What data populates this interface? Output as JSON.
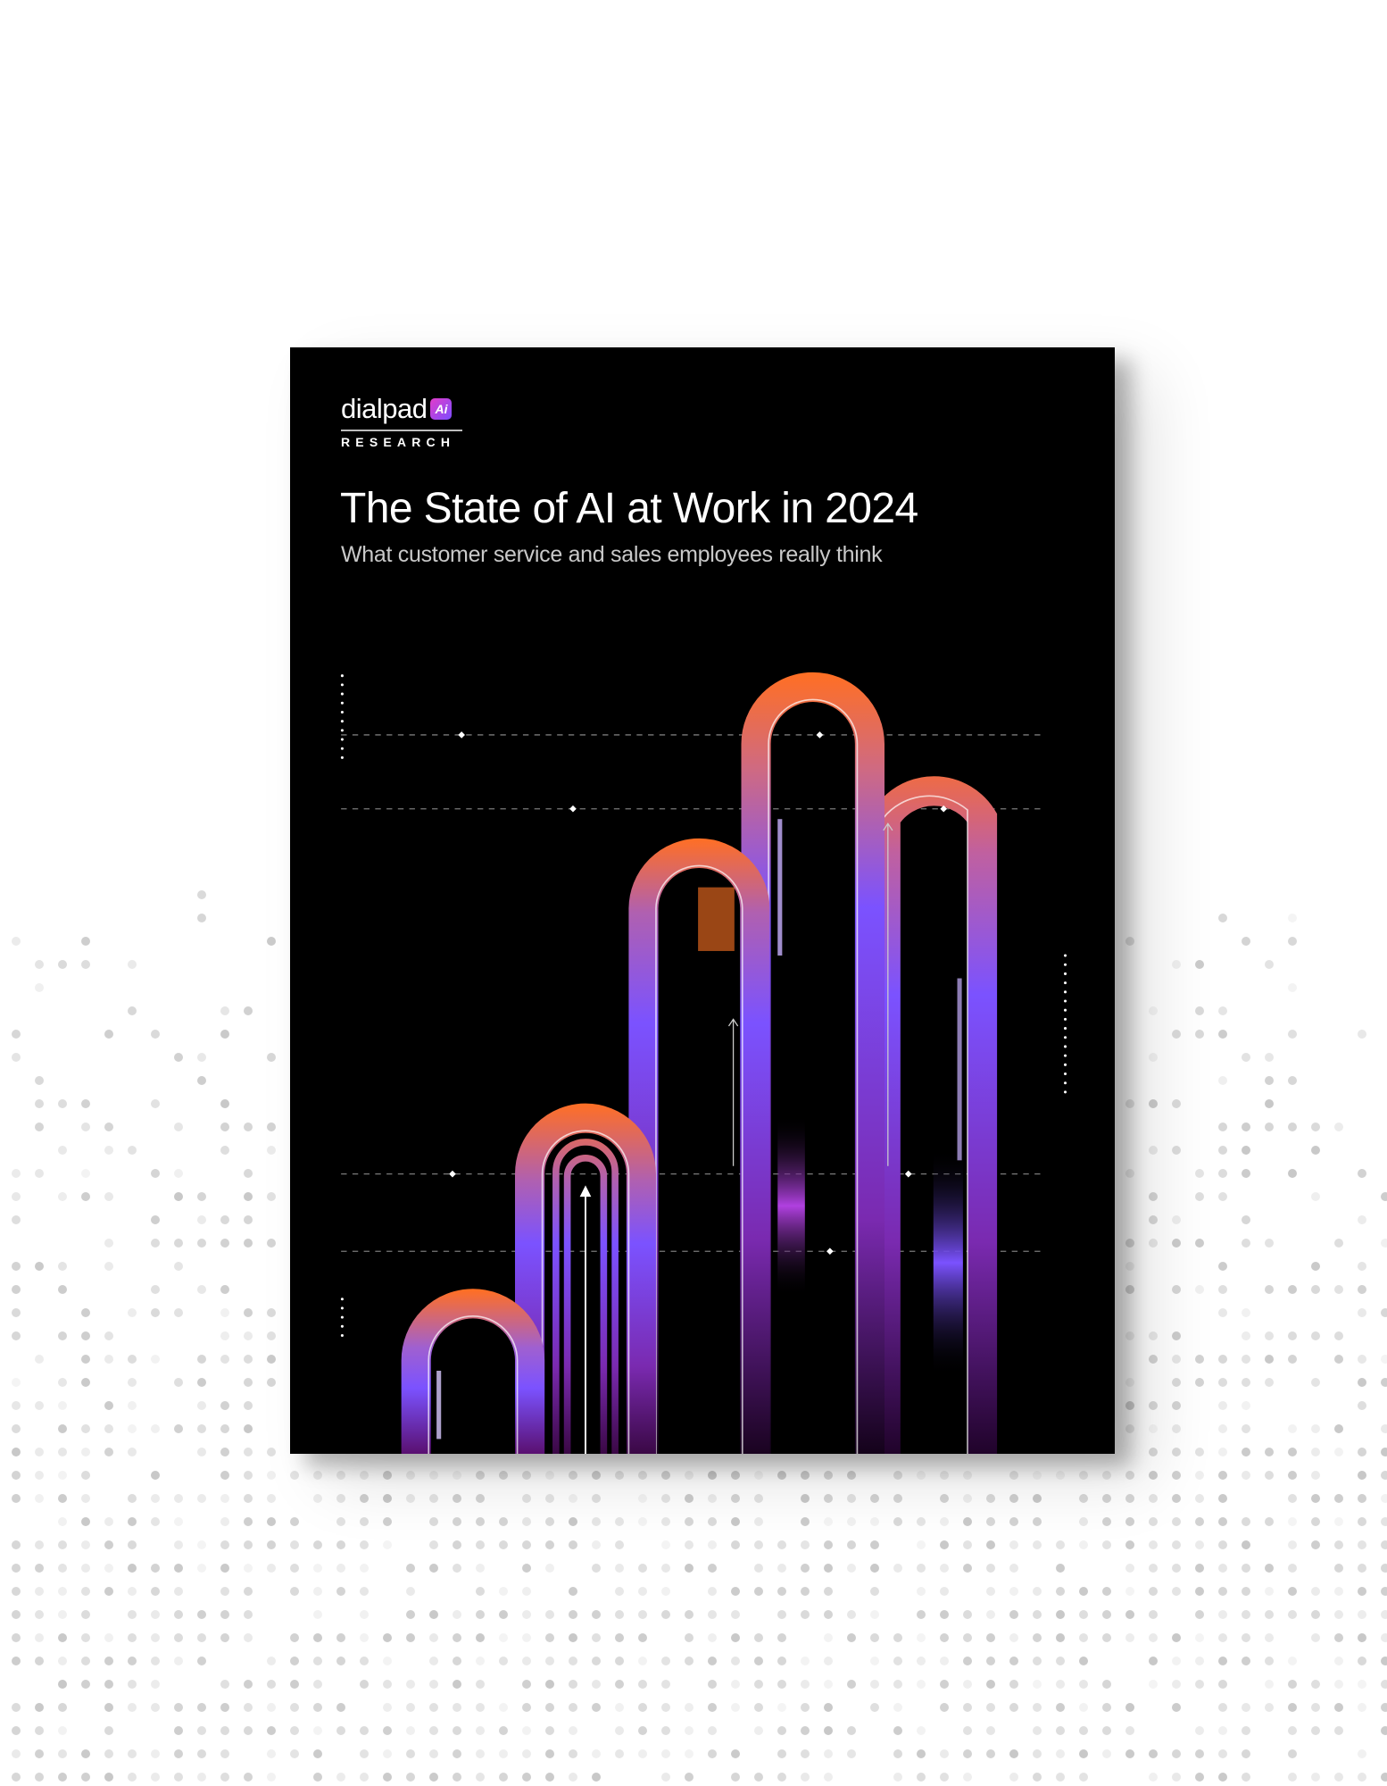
{
  "cover": {
    "logo": {
      "brand": "dialpad",
      "badge": "Ai",
      "division": "RESEARCH"
    },
    "title": "The State of AI at Work in 2024",
    "subtitle": "What customer service and sales employees really think"
  },
  "colors": {
    "cover_background": "#000000",
    "arch_orange": "#ff6f24",
    "arch_violet": "#7b52ff",
    "arch_deep_purple": "#5a1070",
    "page_background": "#ffffff",
    "dot_gray": "#d4d4d4"
  }
}
